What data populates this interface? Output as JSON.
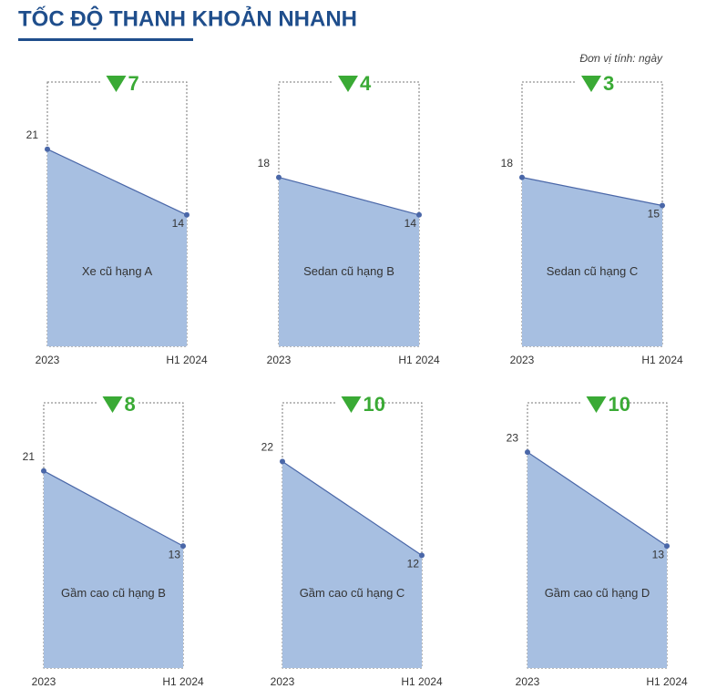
{
  "title": "TỐC ĐỘ THANH KHOẢN NHANH",
  "unit_note": "Đơn vị tính: ngày",
  "chart_data": [
    {
      "type": "area",
      "title": "Xe cũ hạng A",
      "categories": [
        "2023",
        "H1 2024"
      ],
      "values": [
        21,
        14
      ],
      "decrease": 7
    },
    {
      "type": "area",
      "title": "Sedan cũ hạng B",
      "categories": [
        "2023",
        "H1 2024"
      ],
      "values": [
        18,
        14
      ],
      "decrease": 4
    },
    {
      "type": "area",
      "title": "Sedan cũ hạng C",
      "categories": [
        "2023",
        "H1 2024"
      ],
      "values": [
        18,
        15
      ],
      "decrease": 3
    },
    {
      "type": "area",
      "title": "Gầm cao cũ hạng B",
      "categories": [
        "2023",
        "H1 2024"
      ],
      "values": [
        21,
        13
      ],
      "decrease": 8
    },
    {
      "type": "area",
      "title": "Gầm cao cũ hạng C",
      "categories": [
        "2023",
        "H1 2024"
      ],
      "values": [
        22,
        12
      ],
      "decrease": 10
    },
    {
      "type": "area",
      "title": "Gầm cao cũ hạng D",
      "categories": [
        "2023",
        "H1 2024"
      ],
      "values": [
        23,
        13
      ],
      "decrease": 10
    }
  ]
}
